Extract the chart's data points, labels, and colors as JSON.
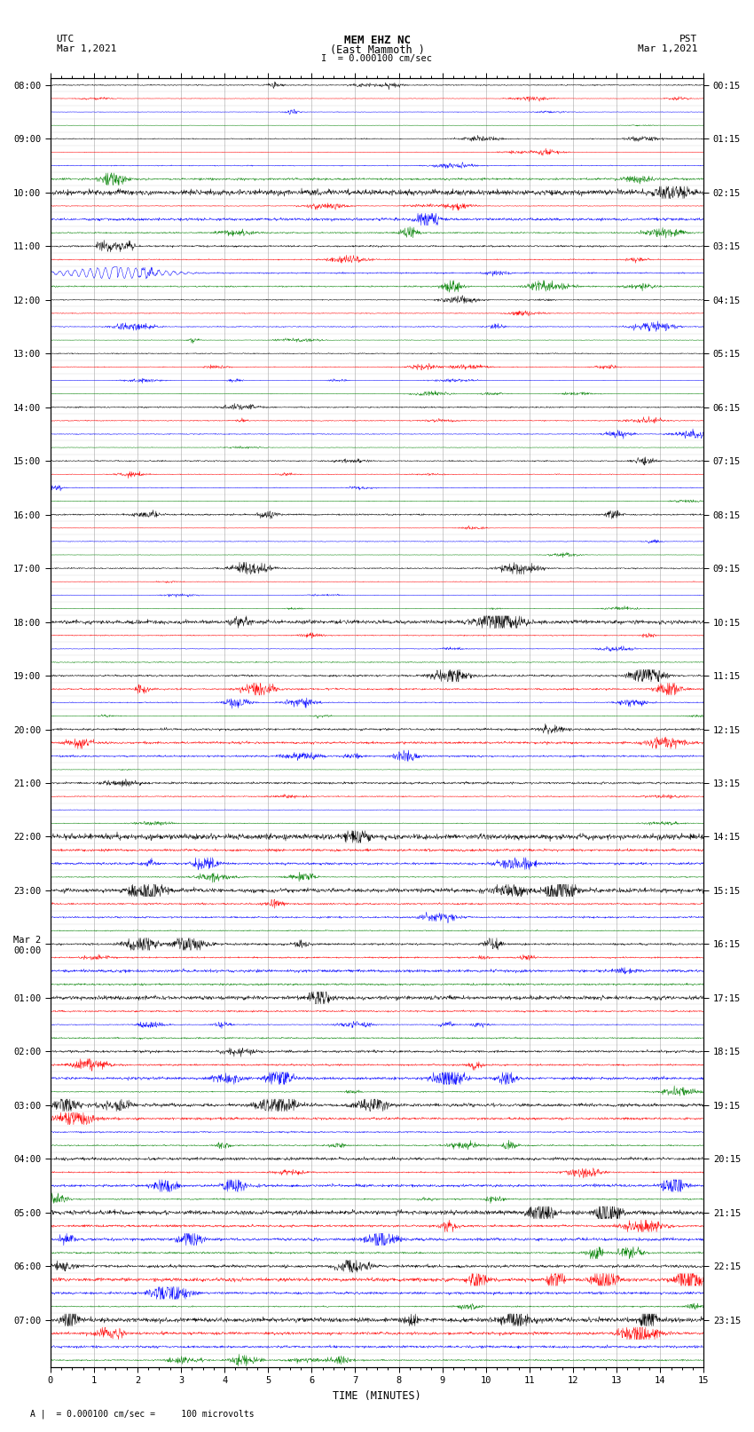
{
  "title_line1": "MEM EHZ NC",
  "title_line2": "(East Mammoth )",
  "title_line3": "I  = 0.000100 cm/sec",
  "left_header_line1": "UTC",
  "left_header_line2": "Mar 1,2021",
  "right_header_line1": "PST",
  "right_header_line2": "Mar 1,2021",
  "xlabel": "TIME (MINUTES)",
  "footer": "A |  = 0.000100 cm/sec =     100 microvolts",
  "utc_labels_hours": [
    "08:00",
    "09:00",
    "10:00",
    "11:00",
    "12:00",
    "13:00",
    "14:00",
    "15:00",
    "16:00",
    "17:00",
    "18:00",
    "19:00",
    "20:00",
    "21:00",
    "22:00",
    "23:00",
    "Mar 2\n00:00",
    "01:00",
    "02:00",
    "03:00",
    "04:00",
    "05:00",
    "06:00",
    "07:00"
  ],
  "pst_labels_hours": [
    "00:15",
    "01:15",
    "02:15",
    "03:15",
    "04:15",
    "05:15",
    "06:15",
    "07:15",
    "08:15",
    "09:15",
    "10:15",
    "11:15",
    "12:15",
    "13:15",
    "14:15",
    "15:15",
    "16:15",
    "17:15",
    "18:15",
    "19:15",
    "20:15",
    "21:15",
    "22:15",
    "23:15"
  ],
  "colors_cycle": [
    "black",
    "red",
    "blue",
    "green"
  ],
  "n_rows": 96,
  "n_minutes": 15,
  "bg_color": "#ffffff",
  "plot_bg": "#ffffff",
  "grid_color": "#999999",
  "seismogram_lw": 0.35,
  "seed": 12345
}
